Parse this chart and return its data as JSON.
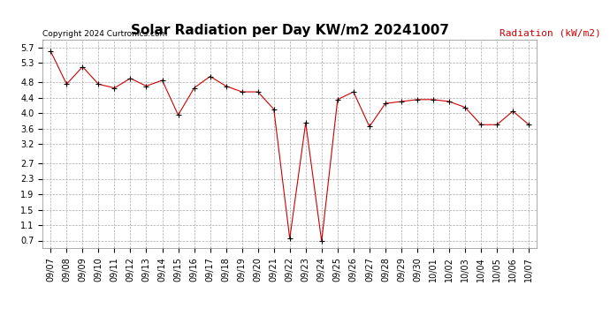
{
  "title": "Solar Radiation per Day KW/m2 20241007",
  "copyright_text": "Copyright 2024 Curtronics.com",
  "legend_label": "Radiation (kW/m2)",
  "dates": [
    "09/07",
    "09/08",
    "09/09",
    "09/10",
    "09/11",
    "09/12",
    "09/13",
    "09/14",
    "09/15",
    "09/16",
    "09/17",
    "09/18",
    "09/19",
    "09/20",
    "09/21",
    "09/22",
    "09/23",
    "09/24",
    "09/25",
    "09/26",
    "09/27",
    "09/28",
    "09/29",
    "09/30",
    "10/01",
    "10/02",
    "10/03",
    "10/04",
    "10/05",
    "10/06",
    "10/07"
  ],
  "values": [
    5.6,
    4.75,
    5.2,
    4.75,
    4.65,
    4.9,
    4.7,
    4.85,
    3.95,
    4.65,
    4.95,
    4.7,
    4.55,
    4.55,
    4.1,
    0.75,
    3.75,
    0.68,
    4.35,
    4.55,
    3.65,
    4.25,
    4.3,
    4.35,
    4.35,
    4.3,
    4.15,
    3.7,
    3.7,
    4.05,
    3.7
  ],
  "ylim_min": 0.5,
  "ylim_max": 5.9,
  "yticks": [
    0.7,
    1.1,
    1.5,
    1.9,
    2.3,
    2.7,
    3.2,
    3.6,
    4.0,
    4.4,
    4.8,
    5.3,
    5.7
  ],
  "line_color": "#cc0000",
  "marker_color": "#000000",
  "marker_style": "+",
  "marker_size": 4,
  "grid_color": "#aaaaaa",
  "bg_color": "#ffffff",
  "title_fontsize": 11,
  "tick_fontsize": 7,
  "copyright_fontsize": 6.5,
  "legend_color": "#cc0000",
  "legend_fontsize": 8
}
